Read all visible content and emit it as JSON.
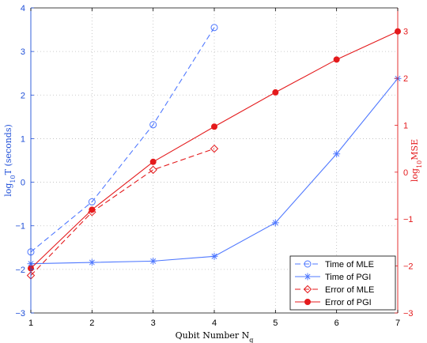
{
  "chart_data": {
    "type": "line",
    "xlabel": "Qubit Number N",
    "xlabel_sub": "q",
    "x_ticks": [
      1,
      2,
      3,
      4,
      5,
      6,
      7
    ],
    "xlim": [
      1,
      7
    ],
    "left_axis": {
      "label_prefix": "log",
      "label_sub": "10",
      "label_suffix": "T (seconds)",
      "ylim": [
        -3,
        4
      ],
      "ticks": [
        -3,
        -2,
        -1,
        0,
        1,
        2,
        3,
        4
      ],
      "color": "#1f4fd8"
    },
    "right_axis": {
      "label_prefix": "log",
      "label_sub": "10",
      "label_suffix": "MSE",
      "ylim": [
        -3,
        3.5
      ],
      "ticks": [
        -3,
        -2,
        -1,
        0,
        1,
        2,
        3
      ],
      "color": "#e41a1c"
    },
    "grid": true,
    "legend_position": "bottom-right",
    "series": [
      {
        "name": "Time of MLE",
        "axis": "left",
        "color": "#4f78ff",
        "line": "dashed",
        "marker": "circle-open",
        "x": [
          1,
          2,
          3,
          4
        ],
        "y": [
          -1.6,
          -0.45,
          1.32,
          3.55
        ]
      },
      {
        "name": "Time of PGI",
        "axis": "left",
        "color": "#4f78ff",
        "line": "solid",
        "marker": "star",
        "x": [
          1,
          2,
          3,
          4,
          5,
          6,
          7
        ],
        "y": [
          -1.87,
          -1.84,
          -1.81,
          -1.7,
          -0.93,
          0.65,
          2.38
        ]
      },
      {
        "name": "Error of MLE",
        "axis": "right",
        "color": "#e41a1c",
        "line": "dashed",
        "marker": "diamond-open",
        "x": [
          1,
          2,
          3,
          4
        ],
        "y": [
          -2.2,
          -0.85,
          0.05,
          0.5
        ]
      },
      {
        "name": "Error of PGI",
        "axis": "right",
        "color": "#e41a1c",
        "line": "solid",
        "marker": "dot-filled",
        "x": [
          1,
          2,
          3,
          4,
          5,
          6,
          7
        ],
        "y": [
          -2.05,
          -0.8,
          0.22,
          0.97,
          1.7,
          2.4,
          3.0
        ]
      }
    ]
  }
}
